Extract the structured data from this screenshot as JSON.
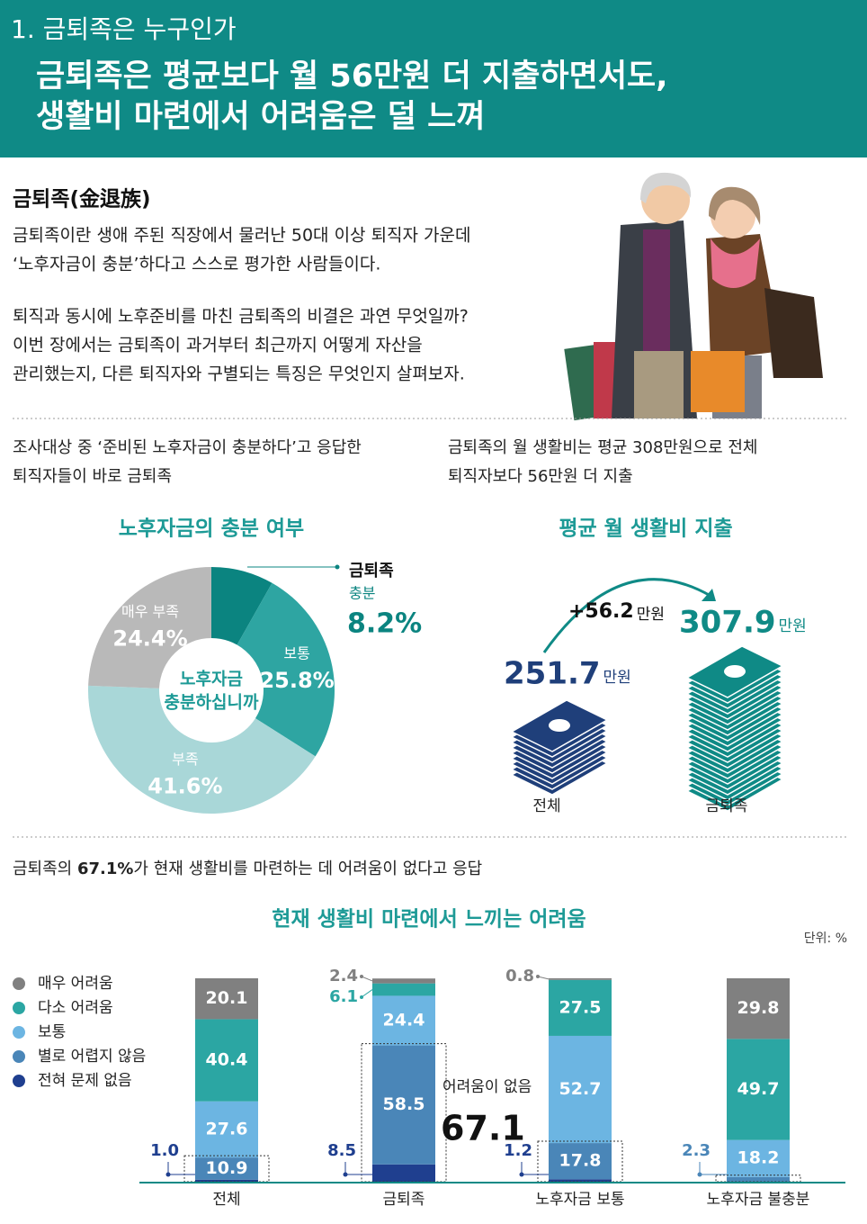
{
  "header": {
    "section": "1. 금퇴족은 누구인가",
    "title_lines": [
      "금퇴족은 평균보다 월 56만원 더 지출하면서도,",
      "생활비 마련에서 어려움은 덜 느껴"
    ]
  },
  "intro": {
    "heading": "금퇴족(金退族)",
    "paragraphs": [
      [
        "금퇴족이란 생애 주된 직장에서 물러난 50대 이상 퇴직자 가운데",
        "‘노후자금이 충분’하다고 스스로 평가한 사람들이다."
      ],
      [
        "퇴직과 동시에 노후준비를 마친 금퇴족의 비결은 과연 무엇일까?",
        "이번 장에서는 금퇴족이 과거부터 최근까지 어떻게 자산을",
        "관리했는지, 다른 퇴직자와 구별되는 특징은 무엇인지 살펴보자."
      ]
    ]
  },
  "left_note": [
    "조사대상 중 ‘준비된 노후자금이 충분하다’고 응답한",
    "퇴직자들이 바로 금퇴족"
  ],
  "right_note": [
    "금퇴족의 월 생활비는 평균 308만원으로 전체",
    "퇴직자보다 56만원 더 지출"
  ],
  "spending": {
    "title": "평균 월 생활비 지출",
    "unit": "만원",
    "difference": {
      "value": 56.2,
      "label": "+56.2"
    },
    "items": [
      {
        "label": "전체",
        "value": 251.7,
        "color": "#1f3f7a"
      },
      {
        "label": "금퇴족",
        "value": 307.9,
        "color": "#0f8a86"
      }
    ]
  },
  "finding": {
    "lead": "금퇴족의 ",
    "highlight": "67.1%",
    "rest": "가 현재 생활비를 마련하는 데 어려움이 없다고 응답"
  },
  "chart_data": [
    {
      "type": "donut",
      "title": "노후자금의 충분 여부",
      "center_lines": [
        "노후자금",
        "충분하십니까"
      ],
      "highlight_label": "금퇴족",
      "categories": [
        "충분",
        "보통",
        "부족",
        "매우 부족"
      ],
      "values": [
        8.2,
        25.8,
        41.6,
        24.4
      ],
      "value_labels": [
        "8.2%",
        "25.8%",
        "41.6%",
        "24.4%"
      ],
      "colors": [
        "#0b8480",
        "#2ea5a2",
        "#a9d7d8",
        "#b9b9b9"
      ]
    },
    {
      "type": "bar",
      "stacked": true,
      "title": "현재 생활비 마련에서 느끼는 어려움",
      "unit_label": "단위: %",
      "legend": "top-left",
      "categories": [
        "전체",
        "금퇴족",
        "노후자금 보통",
        "노후자금 불충분"
      ],
      "ylim": [
        0,
        100
      ],
      "series": [
        {
          "name": "전혀 문제 없음",
          "color": "#1f3f8f",
          "values": [
            1.0,
            8.5,
            1.2,
            null
          ],
          "value_labels": [
            "1.0",
            "8.5",
            "1.2",
            null
          ]
        },
        {
          "name": "별로 어렵지 않음",
          "color": "#4a86b8",
          "values": [
            10.9,
            58.5,
            17.8,
            2.3
          ]
        },
        {
          "name": "보통",
          "color": "#6cb5e2",
          "values": [
            27.6,
            24.4,
            52.7,
            18.2
          ]
        },
        {
          "name": "다소 어려움",
          "color": "#2ba6a3",
          "values": [
            40.4,
            6.1,
            27.5,
            49.7
          ]
        },
        {
          "name": "매우 어려움",
          "color": "#808080",
          "values": [
            20.1,
            2.4,
            0.8,
            29.8
          ]
        }
      ],
      "annotation": {
        "label": "어려움이 없음",
        "value": 67.1
      }
    }
  ]
}
